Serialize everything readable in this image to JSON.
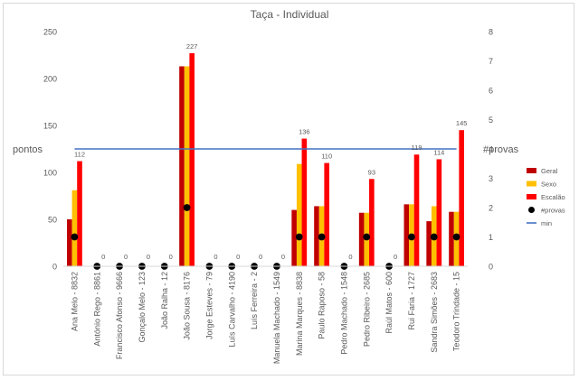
{
  "chart_data": {
    "type": "bar",
    "title": "Taça - Individual",
    "ylabel": "pontos",
    "y2label": "#provas",
    "ylim": [
      0,
      250
    ],
    "yticks": [
      0,
      50,
      100,
      150,
      200,
      250
    ],
    "y2lim": [
      0,
      8
    ],
    "y2ticks": [
      0,
      1,
      2,
      3,
      4,
      5,
      6,
      7,
      8
    ],
    "grid": false,
    "legend_position": "right",
    "categories": [
      "Ana Melo - 8832",
      "António Rego - 8861",
      "Francisco Afonso - 9666",
      "Gonçalo Melo - 123",
      "João Ralha - 12",
      "João Sousa - 8176",
      "Jorge Esteves - 79",
      "Luís Carvalho - 4190",
      "Luís Ferreira - 2",
      "Manuela Machado - 1549",
      "Marina Marques - 8838",
      "Paulo Raposo - 58",
      "Pedro Machado - 1548",
      "Pedro Ribeiro - 2685",
      "Raúl Matos - 600",
      "Rui Faria - 1727",
      "Sandra Simões - 2683",
      "Teodoro Trindade - 15"
    ],
    "series": [
      {
        "name": "Geral",
        "kind": "bar",
        "axis": "left",
        "color": "#c00000",
        "values": [
          50,
          0,
          0,
          0,
          0,
          213,
          0,
          0,
          0,
          0,
          60,
          64,
          0,
          57,
          0,
          66,
          48,
          58
        ]
      },
      {
        "name": "Sexo",
        "kind": "bar",
        "axis": "left",
        "color": "#ffc000",
        "values": [
          81,
          0,
          0,
          0,
          0,
          213,
          0,
          0,
          0,
          0,
          109,
          64,
          0,
          57,
          0,
          66,
          64,
          58
        ]
      },
      {
        "name": "Escalão",
        "kind": "bar",
        "axis": "left",
        "color": "#ff0000",
        "values": [
          112,
          0,
          0,
          0,
          0,
          227,
          0,
          0,
          0,
          0,
          136,
          110,
          0,
          93,
          0,
          119,
          114,
          145
        ]
      },
      {
        "name": "#provas",
        "kind": "marker",
        "axis": "right",
        "color": "#000000",
        "values": [
          1,
          0,
          0,
          0,
          0,
          2,
          0,
          0,
          0,
          0,
          1,
          1,
          0,
          1,
          0,
          1,
          1,
          1
        ]
      },
      {
        "name": "min",
        "kind": "line",
        "axis": "right",
        "color": "#4472c4",
        "values": [
          4,
          4,
          4,
          4,
          4,
          4,
          4,
          4,
          4,
          4,
          4,
          4,
          4,
          4,
          4,
          4,
          4,
          4
        ]
      }
    ],
    "data_labels": [
      "112",
      "0",
      "0",
      "0",
      "0",
      "227",
      "0",
      "0",
      "0",
      "0",
      "136",
      "110",
      "0",
      "93",
      "0",
      "119",
      "114",
      "145"
    ]
  }
}
